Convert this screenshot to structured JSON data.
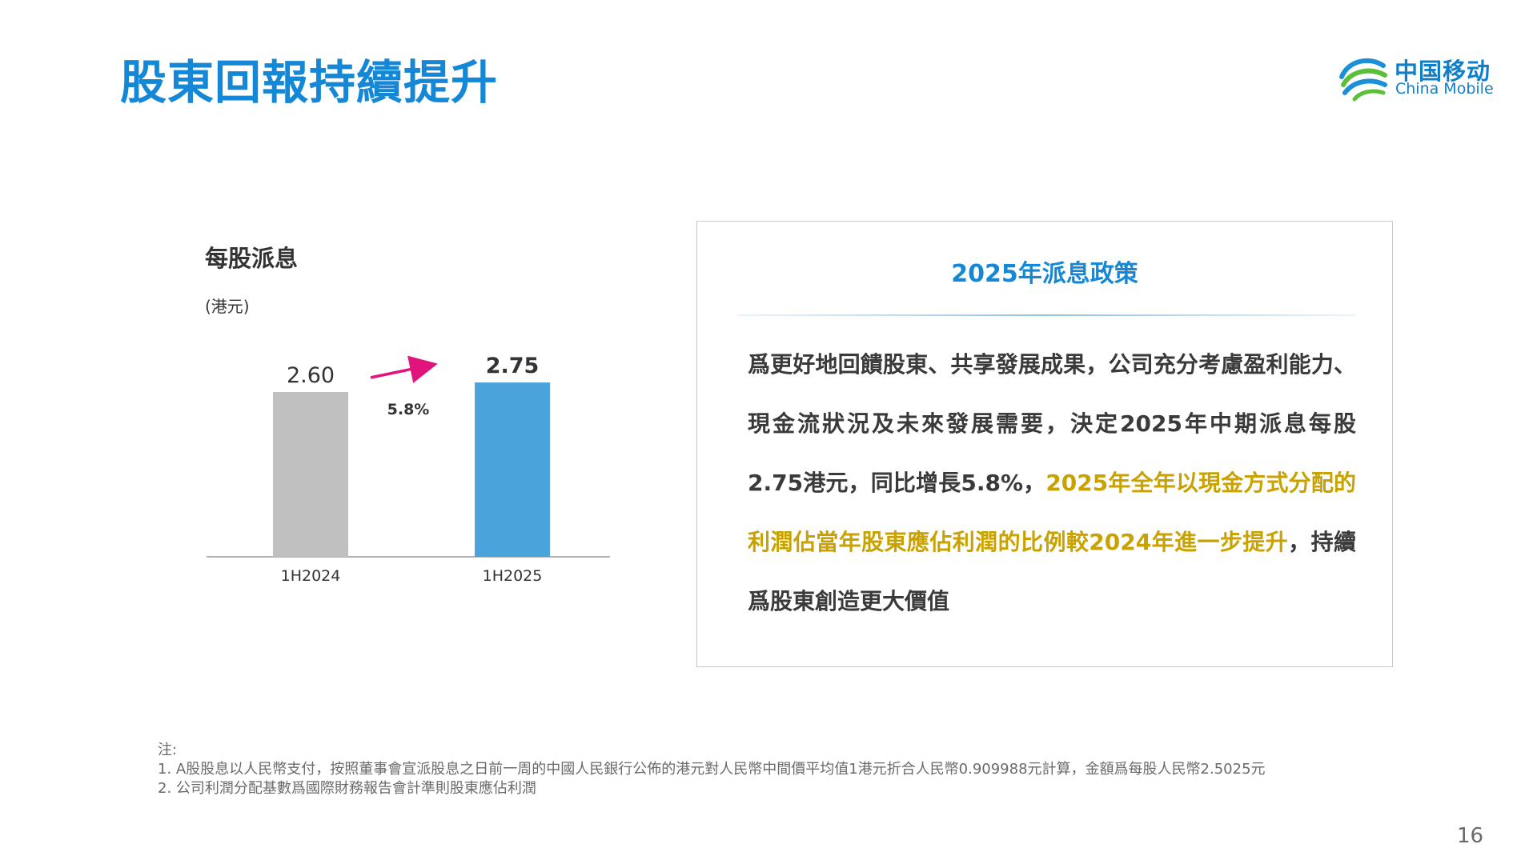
{
  "title": "股東回報持續提升",
  "logo": {
    "cn": "中国移动",
    "en": "China Mobile"
  },
  "chart": {
    "title": "每股派息",
    "unit": "(港元)",
    "growth_label": "5.8%"
  },
  "chart_data": {
    "type": "bar",
    "title": "每股派息",
    "ylabel": "(港元)",
    "categories": [
      "1H2024",
      "1H2025"
    ],
    "values": [
      2.6,
      2.75
    ],
    "value_labels": [
      "2.60",
      "2.75"
    ],
    "bar_colors": [
      "#c0c0c0",
      "#4aa3da"
    ],
    "annotation": "5.8%",
    "grid": false,
    "ylim": [
      0,
      3.0
    ]
  },
  "policy": {
    "title": "2025年派息政策",
    "text_normal": "爲更好地回饋股東、共享發展成果，公司充分考慮盈利能力、現金流狀況及未來發展需要，決定2025年中期派息每股2.75港元，同比增長5.8%，",
    "text_highlight": "2025年全年以現金方式分配的利潤佔當年股東應佔利潤的比例較2024年進一步提升",
    "text_end": "，持續爲股東創造更大價值"
  },
  "notes": {
    "heading": "注:",
    "items": [
      "1. A股股息以人民幣支付，按照董事會宣派股息之日前一周的中國人民銀行公佈的港元對人民幣中間價平均值1港元折合人民幣0.909988元計算，金額爲每股人民幣2.5025元",
      "2. 公司利潤分配基數爲國際財務報告會計準則股東應佔利潤"
    ]
  },
  "page_number": "16",
  "colors": {
    "title_blue": "#1488d6",
    "highlight_gold": "#c9a200",
    "arrow_magenta": "#e0147a",
    "bar_gray": "#c0c0c0",
    "bar_blue": "#4aa3da"
  }
}
